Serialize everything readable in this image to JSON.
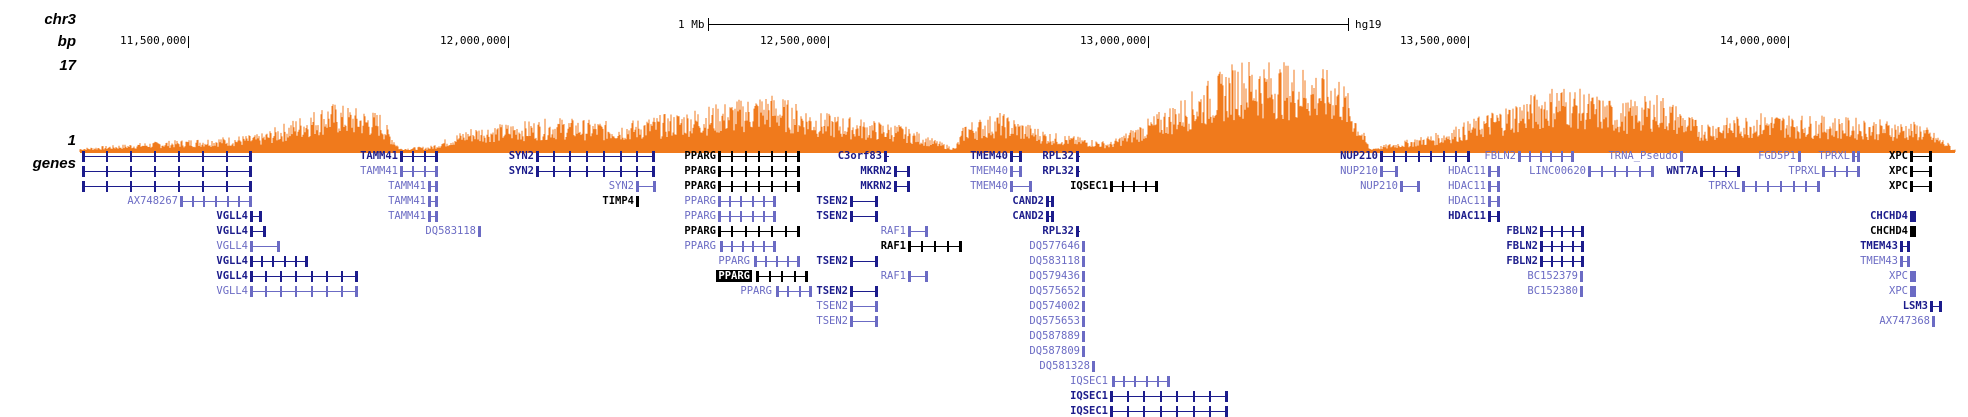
{
  "side_labels": {
    "chrom": "chr3",
    "bp": "bp",
    "ymax": "17",
    "ymin": "1",
    "track": "genes"
  },
  "scale": {
    "size_label": "1 Mb",
    "assembly": "hg19"
  },
  "ticks": [
    "11,500,000",
    "12,000,000",
    "12,500,000",
    "13,000,000",
    "13,500,000",
    "14,000,000"
  ],
  "colors": {
    "coverage": "#f07a1c",
    "dark": "#000000",
    "medium": "#1c1c8c",
    "light": "#6b6bc4"
  },
  "genes": [
    {
      "label": "",
      "tone": "medium"
    },
    {
      "label": "",
      "tone": "medium"
    },
    {
      "label": "",
      "tone": "medium"
    },
    {
      "label": "AX748267",
      "tone": "light"
    },
    {
      "label": "VGLL4",
      "tone": "medium"
    },
    {
      "label": "VGLL4",
      "tone": "medium"
    },
    {
      "label": "VGLL4",
      "tone": "light"
    },
    {
      "label": "VGLL4",
      "tone": "medium"
    },
    {
      "label": "VGLL4",
      "tone": "medium"
    },
    {
      "label": "VGLL4",
      "tone": "light"
    },
    {
      "label": "TAMM41",
      "tone": "medium"
    },
    {
      "label": "TAMM41",
      "tone": "light"
    },
    {
      "label": "TAMM41",
      "tone": "light"
    },
    {
      "label": "TAMM41",
      "tone": "light"
    },
    {
      "label": "TAMM41",
      "tone": "light"
    },
    {
      "label": "DQ583118",
      "tone": "light"
    },
    {
      "label": "SYN2",
      "tone": "medium"
    },
    {
      "label": "SYN2",
      "tone": "medium"
    },
    {
      "label": "SYN2",
      "tone": "light"
    },
    {
      "label": "TIMP4",
      "tone": "dark"
    },
    {
      "label": "PPARG",
      "tone": "dark"
    },
    {
      "label": "PPARG",
      "tone": "dark"
    },
    {
      "label": "PPARG",
      "tone": "dark"
    },
    {
      "label": "PPARG",
      "tone": "light"
    },
    {
      "label": "PPARG",
      "tone": "light"
    },
    {
      "label": "PPARG",
      "tone": "dark"
    },
    {
      "label": "PPARG",
      "tone": "light"
    },
    {
      "label": "PPARG",
      "tone": "light"
    },
    {
      "label": "PPARG",
      "tone": "highlight"
    },
    {
      "label": "PPARG",
      "tone": "light"
    },
    {
      "label": "C3orf83",
      "tone": "medium"
    },
    {
      "label": "MKRN2",
      "tone": "medium"
    },
    {
      "label": "MKRN2",
      "tone": "medium"
    },
    {
      "label": "TSEN2",
      "tone": "medium"
    },
    {
      "label": "TSEN2",
      "tone": "medium"
    },
    {
      "label": "RAF1",
      "tone": "light"
    },
    {
      "label": "RAF1",
      "tone": "dark"
    },
    {
      "label": "TSEN2",
      "tone": "medium"
    },
    {
      "label": "RAF1",
      "tone": "light"
    },
    {
      "label": "TSEN2",
      "tone": "medium"
    },
    {
      "label": "TSEN2",
      "tone": "light"
    },
    {
      "label": "TSEN2",
      "tone": "light"
    },
    {
      "label": "TMEM40",
      "tone": "medium"
    },
    {
      "label": "TMEM40",
      "tone": "light"
    },
    {
      "label": "TMEM40",
      "tone": "light"
    },
    {
      "label": "RPL32",
      "tone": "medium"
    },
    {
      "label": "RPL32",
      "tone": "medium"
    },
    {
      "label": "IQSEC1",
      "tone": "dark"
    },
    {
      "label": "CAND2",
      "tone": "medium"
    },
    {
      "label": "CAND2",
      "tone": "medium"
    },
    {
      "label": "RPL32",
      "tone": "medium"
    },
    {
      "label": "DQ577646",
      "tone": "light"
    },
    {
      "label": "DQ583118",
      "tone": "light"
    },
    {
      "label": "DQ579436",
      "tone": "light"
    },
    {
      "label": "DQ575652",
      "tone": "light"
    },
    {
      "label": "DQ574002",
      "tone": "light"
    },
    {
      "label": "DQ575653",
      "tone": "light"
    },
    {
      "label": "DQ587889",
      "tone": "light"
    },
    {
      "label": "DQ587809",
      "tone": "light"
    },
    {
      "label": "DQ581328",
      "tone": "light"
    },
    {
      "label": "IQSEC1",
      "tone": "light"
    },
    {
      "label": "IQSEC1",
      "tone": "medium"
    },
    {
      "label": "IQSEC1",
      "tone": "medium"
    },
    {
      "label": "NUP210",
      "tone": "medium"
    },
    {
      "label": "NUP210",
      "tone": "light"
    },
    {
      "label": "NUP210",
      "tone": "light"
    },
    {
      "label": "HDAC11",
      "tone": "light"
    },
    {
      "label": "HDAC11",
      "tone": "light"
    },
    {
      "label": "HDAC11",
      "tone": "light"
    },
    {
      "label": "HDAC11",
      "tone": "medium"
    },
    {
      "label": "FBLN2",
      "tone": "light"
    },
    {
      "label": "LINC00620",
      "tone": "light"
    },
    {
      "label": "TRNA_Pseudo",
      "tone": "light"
    },
    {
      "label": "WNT7A",
      "tone": "medium"
    },
    {
      "label": "FGD5P1",
      "tone": "light"
    },
    {
      "label": "TPRXL",
      "tone": "light"
    },
    {
      "label": "TPRXL",
      "tone": "light"
    },
    {
      "label": "TPRXL",
      "tone": "light"
    },
    {
      "label": "FBLN2",
      "tone": "medium"
    },
    {
      "label": "FBLN2",
      "tone": "medium"
    },
    {
      "label": "FBLN2",
      "tone": "medium"
    },
    {
      "label": "BC152379",
      "tone": "light"
    },
    {
      "label": "BC152380",
      "tone": "light"
    },
    {
      "label": "XPC",
      "tone": "dark"
    },
    {
      "label": "XPC",
      "tone": "dark"
    },
    {
      "label": "XPC",
      "tone": "dark"
    },
    {
      "label": "CHCHD4",
      "tone": "medium"
    },
    {
      "label": "CHCHD4",
      "tone": "dark"
    },
    {
      "label": "TMEM43",
      "tone": "medium"
    },
    {
      "label": "TMEM43",
      "tone": "light"
    },
    {
      "label": "XPC",
      "tone": "light"
    },
    {
      "label": "XPC",
      "tone": "light"
    },
    {
      "label": "LSM3",
      "tone": "medium"
    },
    {
      "label": "AX747368",
      "tone": "light"
    }
  ]
}
